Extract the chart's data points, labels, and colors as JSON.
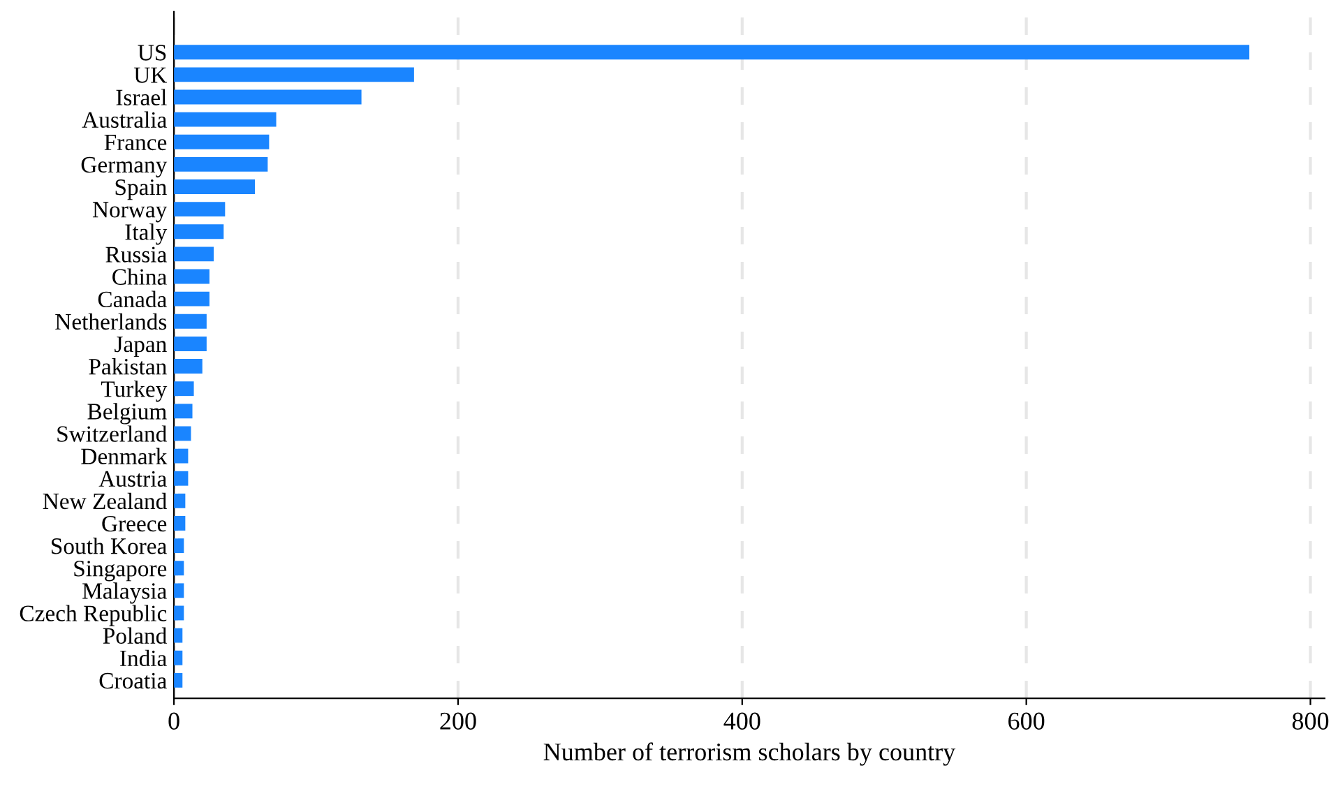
{
  "chart_data": {
    "type": "bar",
    "orientation": "horizontal",
    "categories": [
      "US",
      "UK",
      "Israel",
      "Australia",
      "France",
      "Germany",
      "Spain",
      "Norway",
      "Italy",
      "Russia",
      "China",
      "Canada",
      "Netherlands",
      "Japan",
      "Pakistan",
      "Turkey",
      "Belgium",
      "Switzerland",
      "Denmark",
      "Austria",
      "New Zealand",
      "Greece",
      "South Korea",
      "Singapore",
      "Malaysia",
      "Czech Republic",
      "Poland",
      "India",
      "Croatia"
    ],
    "values": [
      757,
      169,
      132,
      72,
      67,
      66,
      57,
      36,
      35,
      28,
      25,
      25,
      23,
      23,
      20,
      14,
      13,
      12,
      10,
      10,
      8,
      8,
      7,
      7,
      7,
      7,
      6,
      6,
      6
    ],
    "color": "#1a85ff",
    "xlim": [
      0,
      810
    ],
    "xticks": [
      0,
      200,
      400,
      600,
      800
    ],
    "xlabel": "Number of terrorism scholars by country",
    "grid": "x",
    "legend": false
  }
}
